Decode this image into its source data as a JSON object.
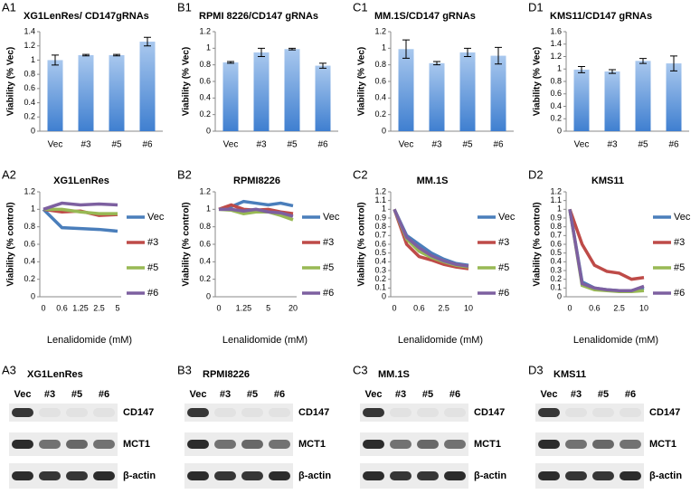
{
  "chart_data": [
    {
      "type": "bar",
      "panel": "A1",
      "title": "XG1LenRes/ CD147gRNAs",
      "y_label": "Viability (% Vec)",
      "categories": [
        "Vec",
        "#3",
        "#5",
        "#6"
      ],
      "values": [
        1.0,
        1.07,
        1.07,
        1.26
      ],
      "errors": [
        0.07,
        0.01,
        0.01,
        0.06
      ],
      "color": "#5b9bd5",
      "ylim": [
        0,
        1.4
      ],
      "yticks": [
        0,
        0.2,
        0.4,
        0.6,
        0.8,
        1,
        1.2,
        1.4
      ]
    },
    {
      "type": "bar",
      "panel": "B1",
      "title": "RPMI 8226/CD147 gRNAs",
      "y_label": "Viability (% Vec)",
      "categories": [
        "Vec",
        "#3",
        "#5",
        "#6"
      ],
      "values": [
        0.83,
        0.95,
        0.99,
        0.79
      ],
      "errors": [
        0.01,
        0.05,
        0.01,
        0.03
      ],
      "color": "#5b9bd5",
      "ylim": [
        0,
        1.2
      ],
      "yticks": [
        0,
        0.2,
        0.4,
        0.6,
        0.8,
        1,
        1.2
      ]
    },
    {
      "type": "bar",
      "panel": "C1",
      "title": "MM.1S/CD147 gRNAs",
      "y_label": "Viability (% Vec)",
      "categories": [
        "Vec",
        "#3",
        "#5",
        "#6"
      ],
      "values": [
        0.99,
        0.82,
        0.95,
        0.91
      ],
      "errors": [
        0.11,
        0.02,
        0.05,
        0.1
      ],
      "color": "#5b9bd5",
      "ylim": [
        0,
        1.2
      ],
      "yticks": [
        0,
        0.2,
        0.4,
        0.6,
        0.8,
        1,
        1.2
      ]
    },
    {
      "type": "bar",
      "panel": "D1",
      "title": "KMS11/CD147 gRNAs",
      "y_label": "Viability (% Vec)",
      "categories": [
        "Vec",
        "#3",
        "#5",
        "#6"
      ],
      "values": [
        0.99,
        0.96,
        1.13,
        1.09
      ],
      "errors": [
        0.05,
        0.03,
        0.04,
        0.12
      ],
      "color": "#5b9bd5",
      "ylim": [
        0,
        1.6
      ],
      "yticks": [
        0,
        0.2,
        0.4,
        0.6,
        0.8,
        1,
        1.2,
        1.4,
        1.6
      ]
    },
    {
      "type": "line",
      "panel": "A2",
      "title": "XG1LenRes",
      "y_label": "Viability (% control)",
      "x_label": "Lenalidomide  (mM)",
      "categories": [
        "0",
        "0.6",
        "1.25",
        "2.5",
        "5"
      ],
      "ylim": [
        0,
        1.2
      ],
      "yticks": [
        0,
        0.2,
        0.4,
        0.6,
        0.8,
        1,
        1.2
      ],
      "series": [
        {
          "name": "Vec",
          "color": "#4a7ebb",
          "values": [
            1,
            0.79,
            0.78,
            0.77,
            0.75
          ]
        },
        {
          "name": "#3",
          "color": "#be4b48",
          "values": [
            1,
            0.97,
            0.98,
            0.93,
            0.94
          ]
        },
        {
          "name": "#5",
          "color": "#98b954",
          "values": [
            1,
            1.0,
            0.97,
            0.95,
            0.95
          ]
        },
        {
          "name": "#6",
          "color": "#7d60a0",
          "values": [
            1,
            1.07,
            1.05,
            1.06,
            1.05
          ]
        }
      ]
    },
    {
      "type": "line",
      "panel": "B2",
      "title": "RPMI8226",
      "y_label": "Viability (% control)",
      "x_label": "Lenalidomide  (mM)",
      "categories": [
        "0",
        null,
        "1.25",
        null,
        "5",
        null,
        "20"
      ],
      "ylim": [
        0,
        1.2
      ],
      "yticks": [
        0,
        0.2,
        0.4,
        0.6,
        0.8,
        1,
        1.2
      ],
      "series": [
        {
          "name": "Vec",
          "color": "#4a7ebb",
          "values": [
            1,
            1.03,
            1.09,
            1.07,
            1.05,
            1.07,
            1.04
          ]
        },
        {
          "name": "#3",
          "color": "#be4b48",
          "values": [
            1,
            1.05,
            1.0,
            0.99,
            1.0,
            0.97,
            0.95
          ]
        },
        {
          "name": "#5",
          "color": "#98b954",
          "values": [
            1,
            0.99,
            0.95,
            0.97,
            0.97,
            0.93,
            0.88
          ]
        },
        {
          "name": "#6",
          "color": "#7d60a0",
          "values": [
            1,
            1.0,
            0.98,
            1.0,
            0.97,
            0.96,
            0.92
          ]
        }
      ]
    },
    {
      "type": "line",
      "panel": "C2",
      "title": "MM.1S",
      "y_label": "Viability (% control)",
      "x_label": "Lenalidomide  (mM)",
      "categories": [
        "0",
        null,
        "0.6",
        null,
        "2.5",
        null,
        "10"
      ],
      "ylim": [
        0,
        1.2
      ],
      "yticks": [
        0,
        0.1,
        0.2,
        0.3,
        0.4,
        0.5,
        0.6,
        0.7,
        0.8,
        0.9,
        1,
        1.1,
        1.2
      ],
      "series": [
        {
          "name": "Vec",
          "color": "#4a7ebb",
          "values": [
            1,
            0.7,
            0.6,
            0.5,
            0.43,
            0.38,
            0.36
          ]
        },
        {
          "name": "#3",
          "color": "#be4b48",
          "values": [
            1,
            0.6,
            0.46,
            0.42,
            0.37,
            0.34,
            0.32
          ]
        },
        {
          "name": "#5",
          "color": "#98b954",
          "values": [
            1,
            0.66,
            0.52,
            0.45,
            0.4,
            0.36,
            0.34
          ]
        },
        {
          "name": "#6",
          "color": "#7d60a0",
          "values": [
            1,
            0.68,
            0.56,
            0.47,
            0.41,
            0.37,
            0.35
          ]
        }
      ]
    },
    {
      "type": "line",
      "panel": "D2",
      "title": "KMS11",
      "y_label": "Viability (% control)",
      "x_label": "Lenalidomide  (mM)",
      "categories": [
        "0",
        null,
        "0.6",
        null,
        "2.5",
        null,
        "10"
      ],
      "ylim": [
        0,
        1.2
      ],
      "yticks": [
        0,
        0.1,
        0.2,
        0.3,
        0.4,
        0.5,
        0.6,
        0.7,
        0.8,
        0.9,
        1,
        1.1,
        1.2
      ],
      "series": [
        {
          "name": "Vec",
          "color": "#4a7ebb",
          "values": [
            1,
            0.17,
            0.1,
            0.08,
            0.07,
            0.07,
            0.1
          ]
        },
        {
          "name": "#3",
          "color": "#be4b48",
          "values": [
            1,
            0.6,
            0.36,
            0.29,
            0.27,
            0.2,
            0.22
          ]
        },
        {
          "name": "#5",
          "color": "#98b954",
          "values": [
            1,
            0.13,
            0.08,
            0.07,
            0.06,
            0.06,
            0.07
          ]
        },
        {
          "name": "#6",
          "color": "#7d60a0",
          "values": [
            1,
            0.15,
            0.1,
            0.08,
            0.07,
            0.07,
            0.12
          ]
        }
      ]
    }
  ],
  "blots": [
    {
      "panel": "A3",
      "title": "XG1LenRes",
      "lanes": [
        "Vec",
        "#3",
        "#5",
        "#6"
      ],
      "bands": [
        "CD147",
        "MCT1",
        "β-actin"
      ]
    },
    {
      "panel": "B3",
      "title": "RPMI8226",
      "lanes": [
        "Vec",
        "#3",
        "#5",
        "#6"
      ],
      "bands": [
        "CD147",
        "MCT1",
        "β-actin"
      ]
    },
    {
      "panel": "C3",
      "title": "MM.1S",
      "lanes": [
        "Vec",
        "#3",
        "#5",
        "#6"
      ],
      "bands": [
        "CD147",
        "MCT1",
        "β-actin"
      ]
    },
    {
      "panel": "D3",
      "title": "KMS11",
      "lanes": [
        "Vec",
        "#3",
        "#5",
        "#6"
      ],
      "bands": [
        "CD147",
        "MCT1",
        "β-actin"
      ]
    }
  ]
}
